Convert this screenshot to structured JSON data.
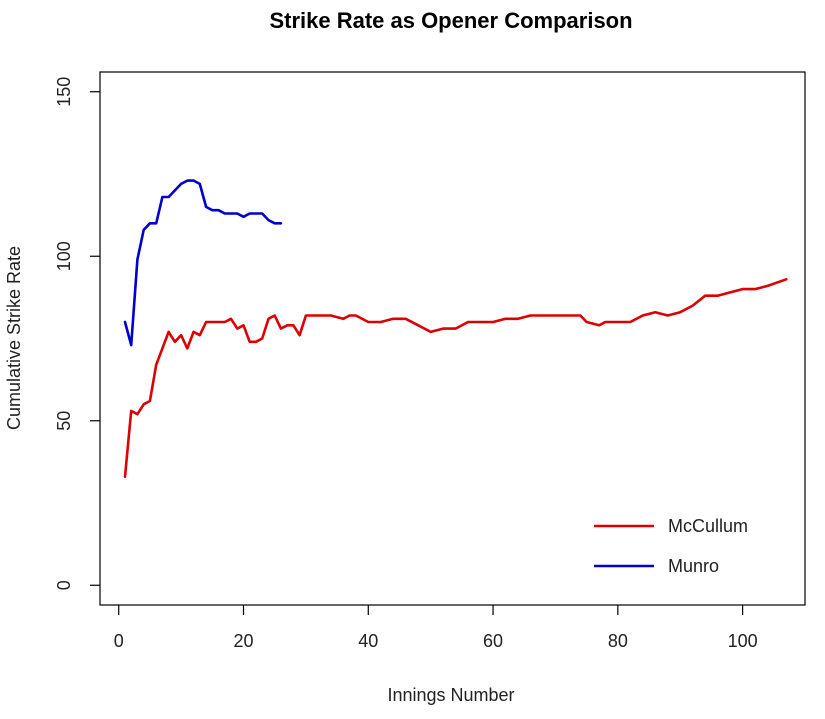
{
  "chart_data": {
    "type": "line",
    "title": "Strike Rate as Opener Comparison",
    "xlabel": "Innings Number",
    "ylabel": "Cumulative Strike Rate",
    "xlim": [
      -3,
      110
    ],
    "ylim": [
      -6,
      156
    ],
    "xticks": [
      0,
      20,
      40,
      60,
      80,
      100
    ],
    "yticks": [
      0,
      50,
      100,
      150
    ],
    "xtick_labels": [
      "0",
      "20",
      "40",
      "60",
      "80",
      "100"
    ],
    "ytick_labels": [
      "0",
      "50",
      "100",
      "150"
    ],
    "grid": false,
    "legend_position": "bottom-right",
    "legend": {
      "entries": [
        "McCullum",
        "Munro"
      ]
    },
    "series": [
      {
        "name": "McCullum",
        "color": "#dd0000",
        "x": [
          1,
          2,
          3,
          4,
          5,
          6,
          7,
          8,
          9,
          10,
          11,
          12,
          13,
          14,
          15,
          16,
          17,
          18,
          19,
          20,
          21,
          22,
          23,
          24,
          25,
          26,
          27,
          28,
          29,
          30,
          32,
          34,
          36,
          37,
          38,
          40,
          42,
          44,
          46,
          48,
          50,
          52,
          54,
          56,
          58,
          60,
          62,
          64,
          66,
          68,
          70,
          72,
          74,
          75,
          77,
          78,
          80,
          82,
          84,
          86,
          88,
          90,
          92,
          94,
          96,
          98,
          100,
          102,
          104,
          107
        ],
        "y": [
          33,
          53,
          52,
          55,
          56,
          67,
          72,
          77,
          74,
          76,
          72,
          77,
          76,
          80,
          80,
          80,
          80,
          81,
          78,
          79,
          74,
          74,
          75,
          81,
          82,
          78,
          79,
          79,
          76,
          82,
          82,
          82,
          81,
          82,
          82,
          80,
          80,
          81,
          81,
          79,
          77,
          78,
          78,
          80,
          80,
          80,
          81,
          81,
          82,
          82,
          82,
          82,
          82,
          80,
          79,
          80,
          80,
          80,
          82,
          83,
          82,
          83,
          85,
          88,
          88,
          89,
          90,
          90,
          91,
          93
        ]
      },
      {
        "name": "Munro",
        "color": "#0000cc",
        "x": [
          1,
          2,
          3,
          4,
          5,
          6,
          7,
          8,
          9,
          10,
          11,
          12,
          13,
          14,
          15,
          16,
          17,
          18,
          19,
          20,
          21,
          22,
          23,
          24,
          25,
          26
        ],
        "y": [
          80,
          73,
          99,
          108,
          110,
          110,
          118,
          118,
          120,
          122,
          123,
          123,
          122,
          115,
          114,
          114,
          113,
          113,
          113,
          112,
          113,
          113,
          113,
          111,
          110,
          110
        ]
      }
    ]
  }
}
